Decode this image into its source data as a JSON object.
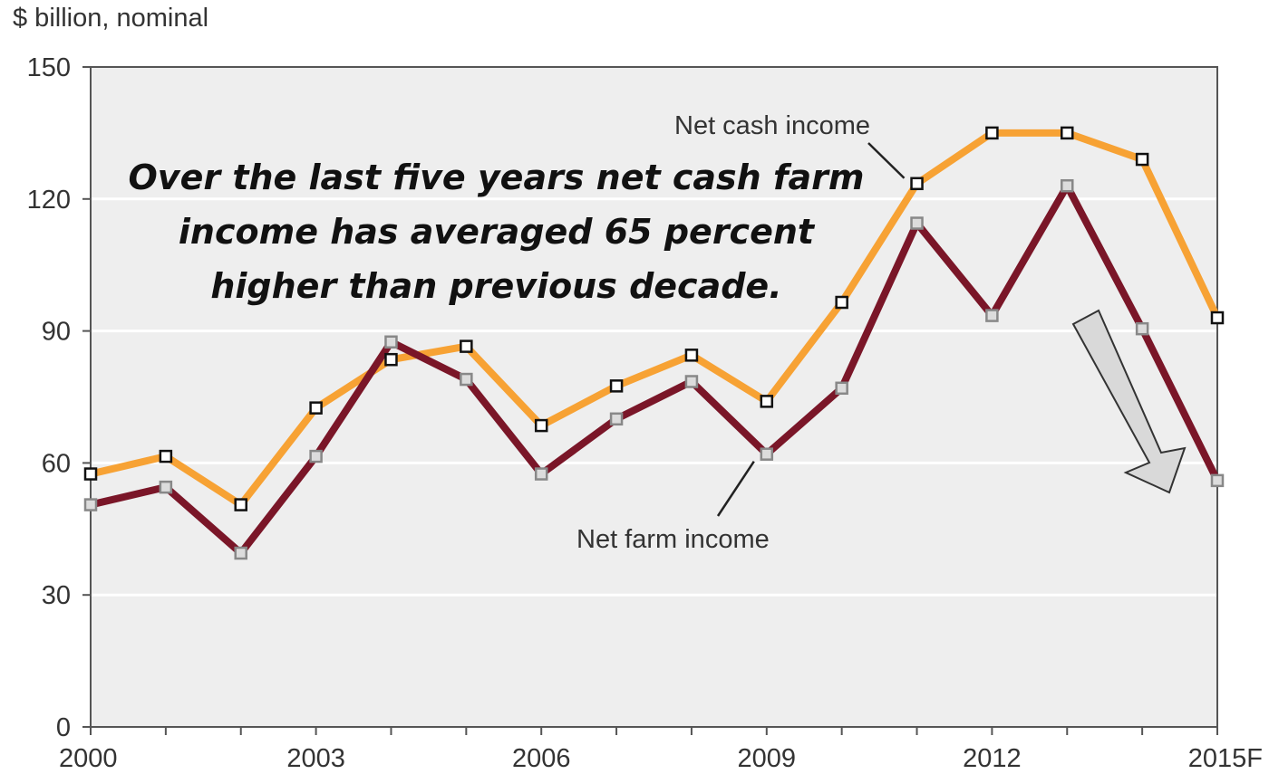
{
  "unit_label": "$ billion, nominal",
  "callout": {
    "lines": [
      "Over the last five years net cash farm",
      "income has averaged 65 percent",
      "higher than previous decade."
    ]
  },
  "colors": {
    "net_cash_income": "#f7a234",
    "net_farm_income": "#7a1628",
    "plot_background": "#eeeeee",
    "gridline": "#ffffff",
    "arrow_fill": "#d9d9d9",
    "arrow_stroke": "#333333"
  },
  "chart_data": {
    "type": "line",
    "ylabel": "$ billion, nominal",
    "ylim": [
      0,
      150
    ],
    "yticks": [
      0,
      30,
      60,
      90,
      120,
      150
    ],
    "x": [
      "2000",
      "2001",
      "2002",
      "2003",
      "2004",
      "2005",
      "2006",
      "2007",
      "2008",
      "2009",
      "2010",
      "2011",
      "2012",
      "2013",
      "2014",
      "2015F"
    ],
    "xticks": [
      "2000",
      "2003",
      "2006",
      "2009",
      "2012",
      "2015F"
    ],
    "grid": true,
    "series": [
      {
        "name": "Net cash income",
        "values": [
          57.5,
          61.5,
          50.5,
          72.5,
          83.5,
          86.5,
          68.5,
          77.5,
          84.5,
          74,
          96.5,
          123.5,
          135,
          135,
          129,
          93
        ]
      },
      {
        "name": "Net farm income",
        "values": [
          50.5,
          54.5,
          39.5,
          61.5,
          87.5,
          79,
          57.5,
          70,
          78.5,
          62,
          77,
          114.5,
          93.5,
          123,
          90.5,
          56
        ]
      }
    ],
    "annotation": "Over the last five years net cash farm income has averaged 65 percent higher than previous decade."
  }
}
